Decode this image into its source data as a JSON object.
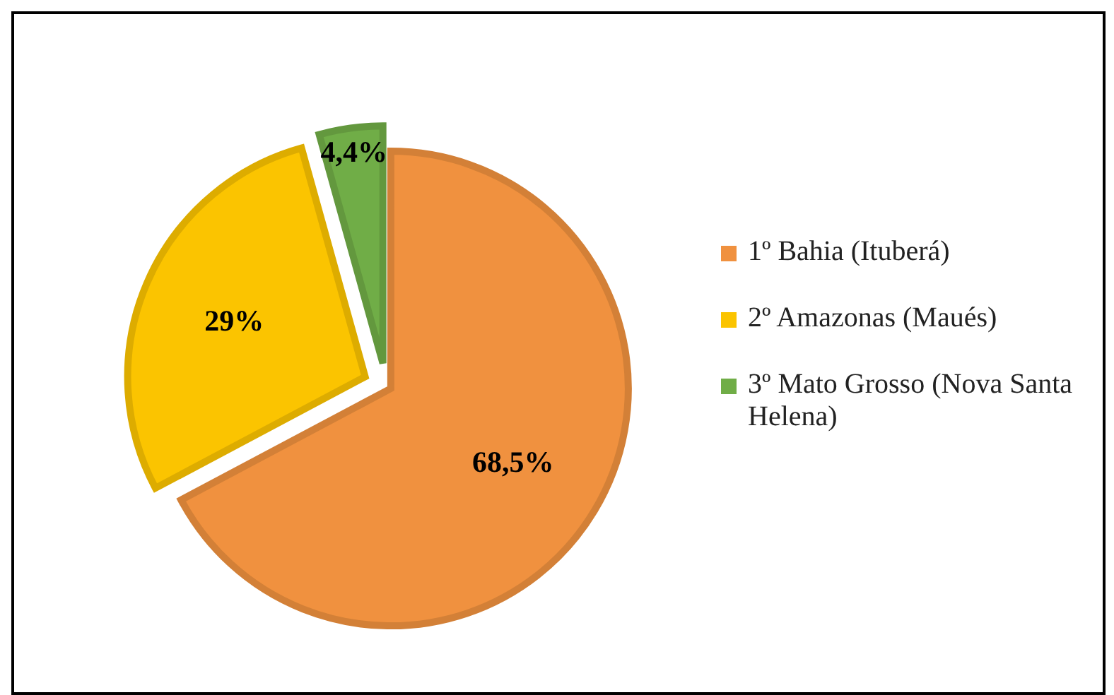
{
  "chart_data": {
    "type": "pie",
    "categories": [
      "1º Bahia (Ituberá)",
      "2º Amazonas (Maués)",
      "3º Mato Grosso (Nova Santa Helena)"
    ],
    "values": [
      68.5,
      29,
      4.4
    ],
    "colors": [
      "#f0913f",
      "#fbc400",
      "#70ad47"
    ],
    "value_labels": [
      "68,5%",
      "29%",
      "4,4%"
    ],
    "legend": "right"
  }
}
